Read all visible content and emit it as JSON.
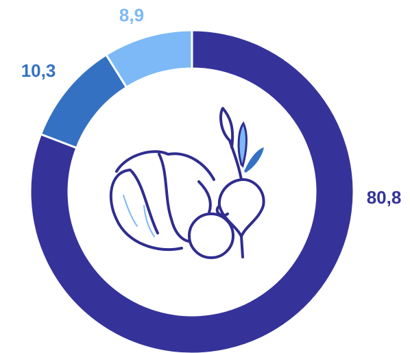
{
  "chart_data": {
    "type": "donut",
    "values": [
      80.8,
      10.3,
      8.9
    ],
    "value_labels": [
      "80,8",
      "10,3",
      "8,9"
    ],
    "colors": [
      "#35339a",
      "#3571c2",
      "#7cb9f6"
    ]
  }
}
